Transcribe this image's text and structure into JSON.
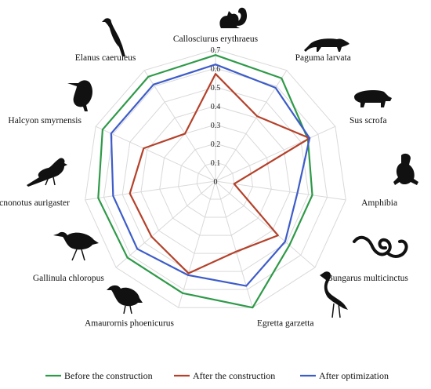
{
  "chart_data": {
    "type": "radar",
    "categories": [
      "Callosciurus erythraeus",
      "Paguma larvata",
      "Sus scrofa",
      "Amphibia",
      "Bungarus multicinctus",
      "Egretta garzetta",
      "Amaurornis phoenicurus",
      "Gallinula chloropus",
      "Pycnonotus aurigaster",
      "Halcyon smyrnensis",
      "Elanus caeruleus"
    ],
    "series": [
      {
        "name": "Before the construction",
        "color": "#2e9a48",
        "values": [
          0.67,
          0.65,
          0.54,
          0.52,
          0.52,
          0.7,
          0.62,
          0.62,
          0.63,
          0.66,
          0.66
        ]
      },
      {
        "name": "After the construction",
        "color": "#b5412a",
        "values": [
          0.57,
          0.41,
          0.55,
          0.1,
          0.44,
          0.39,
          0.51,
          0.45,
          0.46,
          0.42,
          0.3
        ]
      },
      {
        "name": "After optimization",
        "color": "#3d5cc9",
        "values": [
          0.62,
          0.59,
          0.55,
          0.44,
          0.49,
          0.58,
          0.52,
          0.55,
          0.55,
          0.61,
          0.61
        ]
      }
    ],
    "ticks": [
      "0",
      "0.1",
      "0.2",
      "0.3",
      "0.4",
      "0.5",
      "0.6",
      "0.7"
    ],
    "rmax": 0.7,
    "grid": true,
    "legend_position": "bottom"
  },
  "icons": [
    "squirrel-icon",
    "civet-icon",
    "boar-icon",
    "frog-icon",
    "snake-icon",
    "egret-icon",
    "rail-bird-icon",
    "moorhen-icon",
    "bulbul-icon",
    "kingfisher-icon",
    "kite-bird-icon"
  ]
}
